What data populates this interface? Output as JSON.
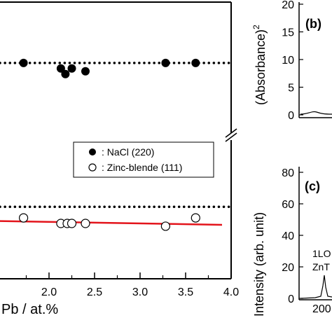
{
  "chart_data": [
    {
      "type": "scatter",
      "xlabel": "Pb / at.%",
      "x_ticks": [
        "2.0",
        "2.5",
        "3.0",
        "3.5",
        "4.0"
      ],
      "xlim": [
        1.2,
        4.0
      ],
      "legend": {
        "placement": "center",
        "entries": [
          {
            "marker": "filled-circle",
            "label": ": NaCl (220)"
          },
          {
            "marker": "open-circle",
            "label": ": Zinc-blende (111)"
          }
        ]
      },
      "series": [
        {
          "marker": "filled",
          "x": [
            1.72,
            2.13,
            2.18,
            2.25,
            2.4,
            3.28,
            3.61
          ],
          "y": [
            0.78,
            0.76,
            0.74,
            0.76,
            0.75,
            0.78,
            0.78
          ],
          "reference_line_y": 0.78
        },
        {
          "marker": "open",
          "x": [
            1.72,
            2.13,
            2.2,
            2.25,
            2.4,
            3.28,
            3.61
          ],
          "y": [
            0.22,
            0.2,
            0.2,
            0.2,
            0.2,
            0.19,
            0.22
          ],
          "reference_line_y": 0.26,
          "fit_line": {
            "x": [
              1.2,
              3.9
            ],
            "y": [
              0.21,
              0.195
            ],
            "color": "#e3141b"
          }
        }
      ],
      "colors": {
        "points": "#000000",
        "fit": "#e3141b"
      }
    },
    {
      "panel": "(b)",
      "type": "line",
      "ylabel": "(Absorbance)",
      "ylabel_superscript": "2",
      "y_ticks": [
        "20",
        "15",
        "10",
        "5",
        "0"
      ],
      "ylim": [
        0,
        20
      ]
    },
    {
      "panel": "(c)",
      "type": "line",
      "ylabel": "Intensity (arb. unit)",
      "y_ticks": [
        "80",
        "60",
        "40",
        "20",
        "0"
      ],
      "ylim": [
        0,
        80
      ],
      "x_ticks": [
        "200"
      ],
      "annotations": [
        "1LO",
        "ZnT"
      ]
    }
  ]
}
